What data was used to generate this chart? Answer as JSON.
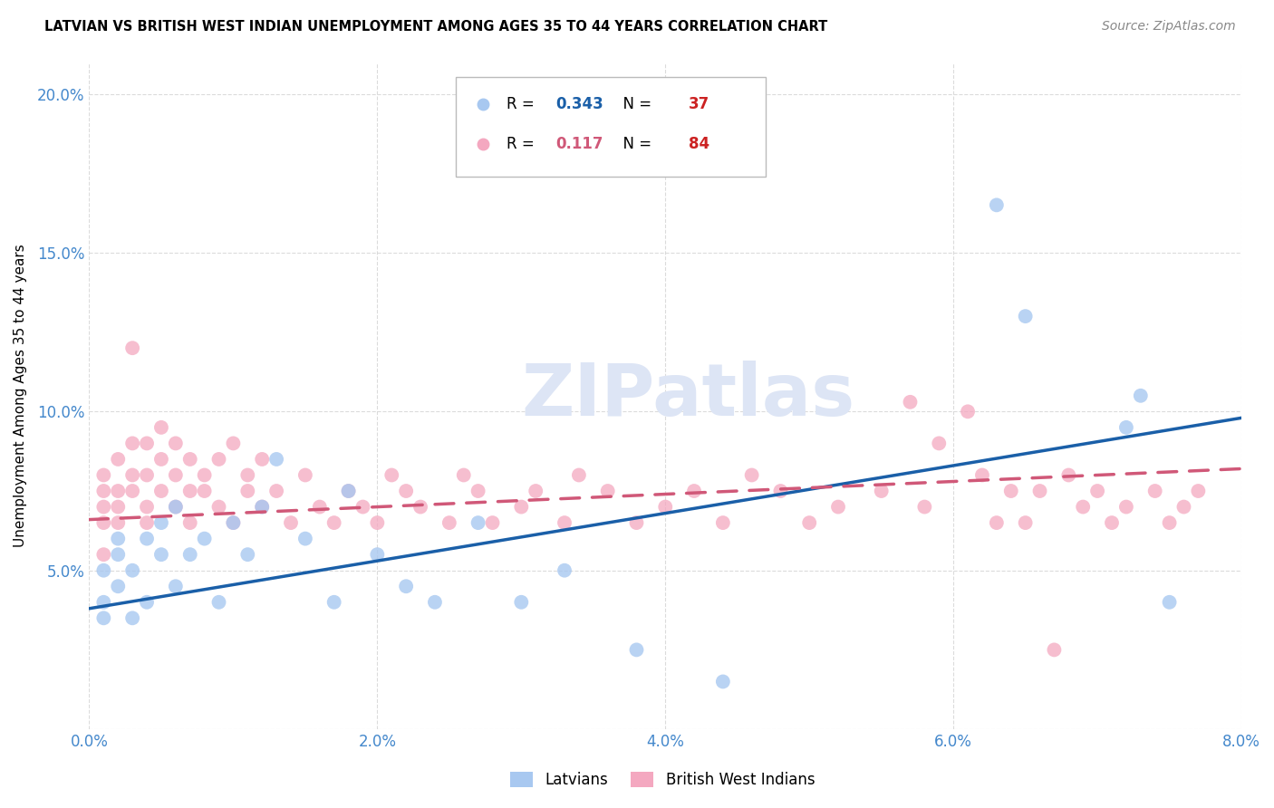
{
  "title": "LATVIAN VS BRITISH WEST INDIAN UNEMPLOYMENT AMONG AGES 35 TO 44 YEARS CORRELATION CHART",
  "source": "Source: ZipAtlas.com",
  "ylabel": "Unemployment Among Ages 35 to 44 years",
  "xlim": [
    0.0,
    0.08
  ],
  "ylim": [
    0.0,
    0.21
  ],
  "xticks": [
    0.0,
    0.02,
    0.04,
    0.06,
    0.08
  ],
  "xtick_labels": [
    "0.0%",
    "2.0%",
    "4.0%",
    "6.0%",
    "8.0%"
  ],
  "yticks": [
    0.0,
    0.05,
    0.1,
    0.15,
    0.2
  ],
  "ytick_labels": [
    "",
    "5.0%",
    "10.0%",
    "15.0%",
    "20.0%"
  ],
  "latvian_R": 0.343,
  "latvian_N": 37,
  "bwi_R": 0.117,
  "bwi_N": 84,
  "legend_label1": "Latvians",
  "legend_label2": "British West Indians",
  "dot_color_latvian": "#a8c8f0",
  "dot_color_bwi": "#f4a8c0",
  "line_color_latvian": "#1a5fa8",
  "line_color_bwi": "#d05878",
  "watermark_text": "ZIPatlas",
  "watermark_color": "#dde5f5",
  "bg_color": "#ffffff",
  "grid_color": "#d8d8d8",
  "tick_color": "#4488cc",
  "latvian_x": [
    0.001,
    0.001,
    0.001,
    0.002,
    0.002,
    0.002,
    0.003,
    0.003,
    0.004,
    0.004,
    0.005,
    0.005,
    0.006,
    0.006,
    0.007,
    0.008,
    0.009,
    0.01,
    0.011,
    0.012,
    0.013,
    0.015,
    0.017,
    0.018,
    0.02,
    0.022,
    0.024,
    0.027,
    0.03,
    0.033,
    0.038,
    0.044,
    0.063,
    0.065,
    0.072,
    0.073,
    0.075
  ],
  "latvian_y": [
    0.05,
    0.04,
    0.035,
    0.06,
    0.045,
    0.055,
    0.035,
    0.05,
    0.06,
    0.04,
    0.065,
    0.055,
    0.07,
    0.045,
    0.055,
    0.06,
    0.04,
    0.065,
    0.055,
    0.07,
    0.085,
    0.06,
    0.04,
    0.075,
    0.055,
    0.045,
    0.04,
    0.065,
    0.04,
    0.05,
    0.025,
    0.015,
    0.165,
    0.13,
    0.095,
    0.105,
    0.04
  ],
  "bwi_x": [
    0.001,
    0.001,
    0.001,
    0.001,
    0.001,
    0.002,
    0.002,
    0.002,
    0.002,
    0.003,
    0.003,
    0.003,
    0.003,
    0.004,
    0.004,
    0.004,
    0.004,
    0.005,
    0.005,
    0.005,
    0.006,
    0.006,
    0.006,
    0.007,
    0.007,
    0.007,
    0.008,
    0.008,
    0.009,
    0.009,
    0.01,
    0.01,
    0.011,
    0.011,
    0.012,
    0.012,
    0.013,
    0.014,
    0.015,
    0.016,
    0.017,
    0.018,
    0.019,
    0.02,
    0.021,
    0.022,
    0.023,
    0.025,
    0.026,
    0.027,
    0.028,
    0.03,
    0.031,
    0.033,
    0.034,
    0.036,
    0.038,
    0.04,
    0.042,
    0.044,
    0.046,
    0.048,
    0.05,
    0.052,
    0.055,
    0.058,
    0.062,
    0.063,
    0.064,
    0.065,
    0.066,
    0.068,
    0.069,
    0.07,
    0.071,
    0.072,
    0.074,
    0.075,
    0.076,
    0.077,
    0.057,
    0.059,
    0.061,
    0.067
  ],
  "bwi_y": [
    0.065,
    0.055,
    0.07,
    0.075,
    0.08,
    0.07,
    0.065,
    0.085,
    0.075,
    0.09,
    0.075,
    0.08,
    0.12,
    0.07,
    0.065,
    0.09,
    0.08,
    0.085,
    0.095,
    0.075,
    0.08,
    0.07,
    0.09,
    0.075,
    0.085,
    0.065,
    0.08,
    0.075,
    0.07,
    0.085,
    0.065,
    0.09,
    0.075,
    0.08,
    0.07,
    0.085,
    0.075,
    0.065,
    0.08,
    0.07,
    0.065,
    0.075,
    0.07,
    0.065,
    0.08,
    0.075,
    0.07,
    0.065,
    0.08,
    0.075,
    0.065,
    0.07,
    0.075,
    0.065,
    0.08,
    0.075,
    0.065,
    0.07,
    0.075,
    0.065,
    0.08,
    0.075,
    0.065,
    0.07,
    0.075,
    0.07,
    0.08,
    0.065,
    0.075,
    0.065,
    0.075,
    0.08,
    0.07,
    0.075,
    0.065,
    0.07,
    0.075,
    0.065,
    0.07,
    0.075,
    0.103,
    0.09,
    0.1,
    0.025
  ],
  "blue_line_x0": 0.0,
  "blue_line_y0": 0.038,
  "blue_line_x1": 0.08,
  "blue_line_y1": 0.098,
  "pink_line_x0": 0.0,
  "pink_line_y0": 0.066,
  "pink_line_x1": 0.08,
  "pink_line_y1": 0.082
}
